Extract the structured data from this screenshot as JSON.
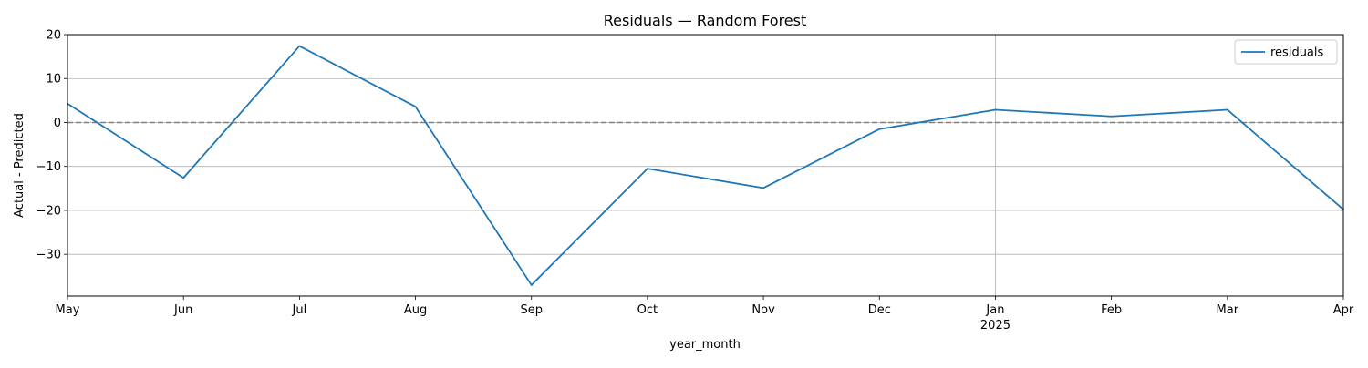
{
  "chart_data": {
    "type": "line",
    "title": "Residuals — Random Forest",
    "xlabel": "year_month",
    "ylabel": "Actual - Predicted",
    "x": [
      "2024-05",
      "2024-06",
      "2024-07",
      "2024-08",
      "2024-09",
      "2024-10",
      "2024-11",
      "2024-12",
      "2025-01",
      "2025-02",
      "2025-03",
      "2025-04"
    ],
    "x_tick_labels": [
      "May",
      "Jun",
      "Jul",
      "Aug",
      "Sep",
      "Oct",
      "Nov",
      "Dec",
      "Jan",
      "Feb",
      "Mar",
      "Apr"
    ],
    "x_year_label": "2025",
    "series": [
      {
        "name": "residuals",
        "color": "#1f77b4",
        "values": [
          4.3,
          -12.6,
          17.4,
          3.6,
          -37.0,
          -10.5,
          -14.9,
          -1.5,
          2.9,
          1.4,
          2.9,
          -19.8
        ]
      }
    ],
    "ylim": [
      -39.5,
      20
    ],
    "yticks": [
      20,
      10,
      0,
      -10,
      -20,
      -30
    ],
    "ytick_labels": [
      "20",
      "10",
      "0",
      "−10",
      "−20",
      "−30"
    ],
    "reference_line": {
      "y": 0,
      "style": "dashed",
      "color": "#808080"
    },
    "grid": true,
    "legend_position": "top-right"
  }
}
